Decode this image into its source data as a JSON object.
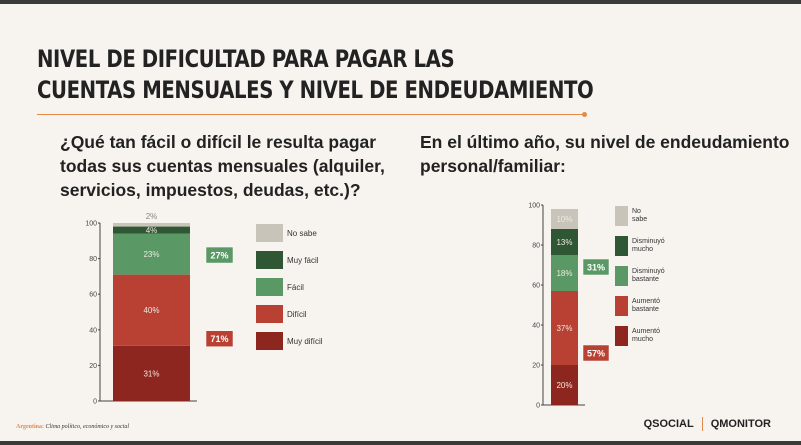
{
  "title": [
    "NIVEL DE DIFICULTAD PARA PAGAR LAS",
    "CUENTAS MENSUALES Y NIVEL DE ENDEUDAMIENTO"
  ],
  "footer": {
    "country": "Argentina:",
    "subtitle": "Clima político, económico y social",
    "logo1": "QSOCIAL",
    "logo2": "QMONITOR"
  },
  "chart_data": [
    {
      "type": "bar",
      "stacked": true,
      "title": "¿Qué tan fácil o difícil le resulta pagar todas sus cuentas mensuales (alquiler, servicios, impuestos, deudas, etc.)?",
      "title_lines": [
        "¿Qué tan fácil o difícil le resulta pagar",
        "todas sus cuentas mensuales (alquiler,",
        "servicios, impuestos, deudas, etc.)?"
      ],
      "ylim": [
        0,
        100
      ],
      "yticks": [
        "0",
        "20",
        "40",
        "60",
        "80",
        "100"
      ],
      "series": [
        {
          "name": "Muy difícil",
          "value": 31,
          "label": "31%",
          "color": "#8e2620"
        },
        {
          "name": "Difícil",
          "value": 40,
          "label": "40%",
          "color": "#b84134"
        },
        {
          "name": "Fácil",
          "value": 23,
          "label": "23%",
          "color": "#5a9966"
        },
        {
          "name": "Muy fácil",
          "value": 4,
          "label": "4%",
          "color": "#2f5733"
        },
        {
          "name": "No sabe",
          "value": 2,
          "label": "2%",
          "color": "#c8c4ba"
        }
      ],
      "legend_order": [
        "No sabe",
        "Muy fácil",
        "Fácil",
        "Difícil",
        "Muy difícil"
      ],
      "annotations": [
        {
          "text": "27%",
          "color": "#5a9966",
          "at": 82
        },
        {
          "text": "71%",
          "color": "#b84134",
          "at": 35
        }
      ]
    },
    {
      "type": "bar",
      "stacked": true,
      "title": "En el último año, su nivel de endeudamiento personal/familiar:",
      "title_lines": [
        "En el último año, su nivel de endeudamiento",
        "personal/familiar:"
      ],
      "ylim": [
        0,
        100
      ],
      "yticks": [
        "0",
        "20",
        "40",
        "60",
        "80",
        "100"
      ],
      "series": [
        {
          "name": "Aumentó mucho",
          "value": 20,
          "label": "20%",
          "color": "#8e2620"
        },
        {
          "name": "Aumentó bastante",
          "value": 37,
          "label": "37%",
          "color": "#b84134"
        },
        {
          "name": "Disminuyó bastante",
          "value": 18,
          "label": "18%",
          "color": "#5a9966"
        },
        {
          "name": "Disminuyó mucho",
          "value": 13,
          "label": "13%",
          "color": "#2f5733"
        },
        {
          "name": "No sabe",
          "value": 10,
          "label": "10%",
          "color": "#c8c4ba"
        }
      ],
      "legend_order": [
        "No sabe",
        "Disminuyó mucho",
        "Disminuyó bastante",
        "Aumentó bastante",
        "Aumentó mucho"
      ],
      "annotations": [
        {
          "text": "31%",
          "color": "#5a9966",
          "at": 69
        },
        {
          "text": "57%",
          "color": "#b84134",
          "at": 26
        }
      ]
    }
  ]
}
